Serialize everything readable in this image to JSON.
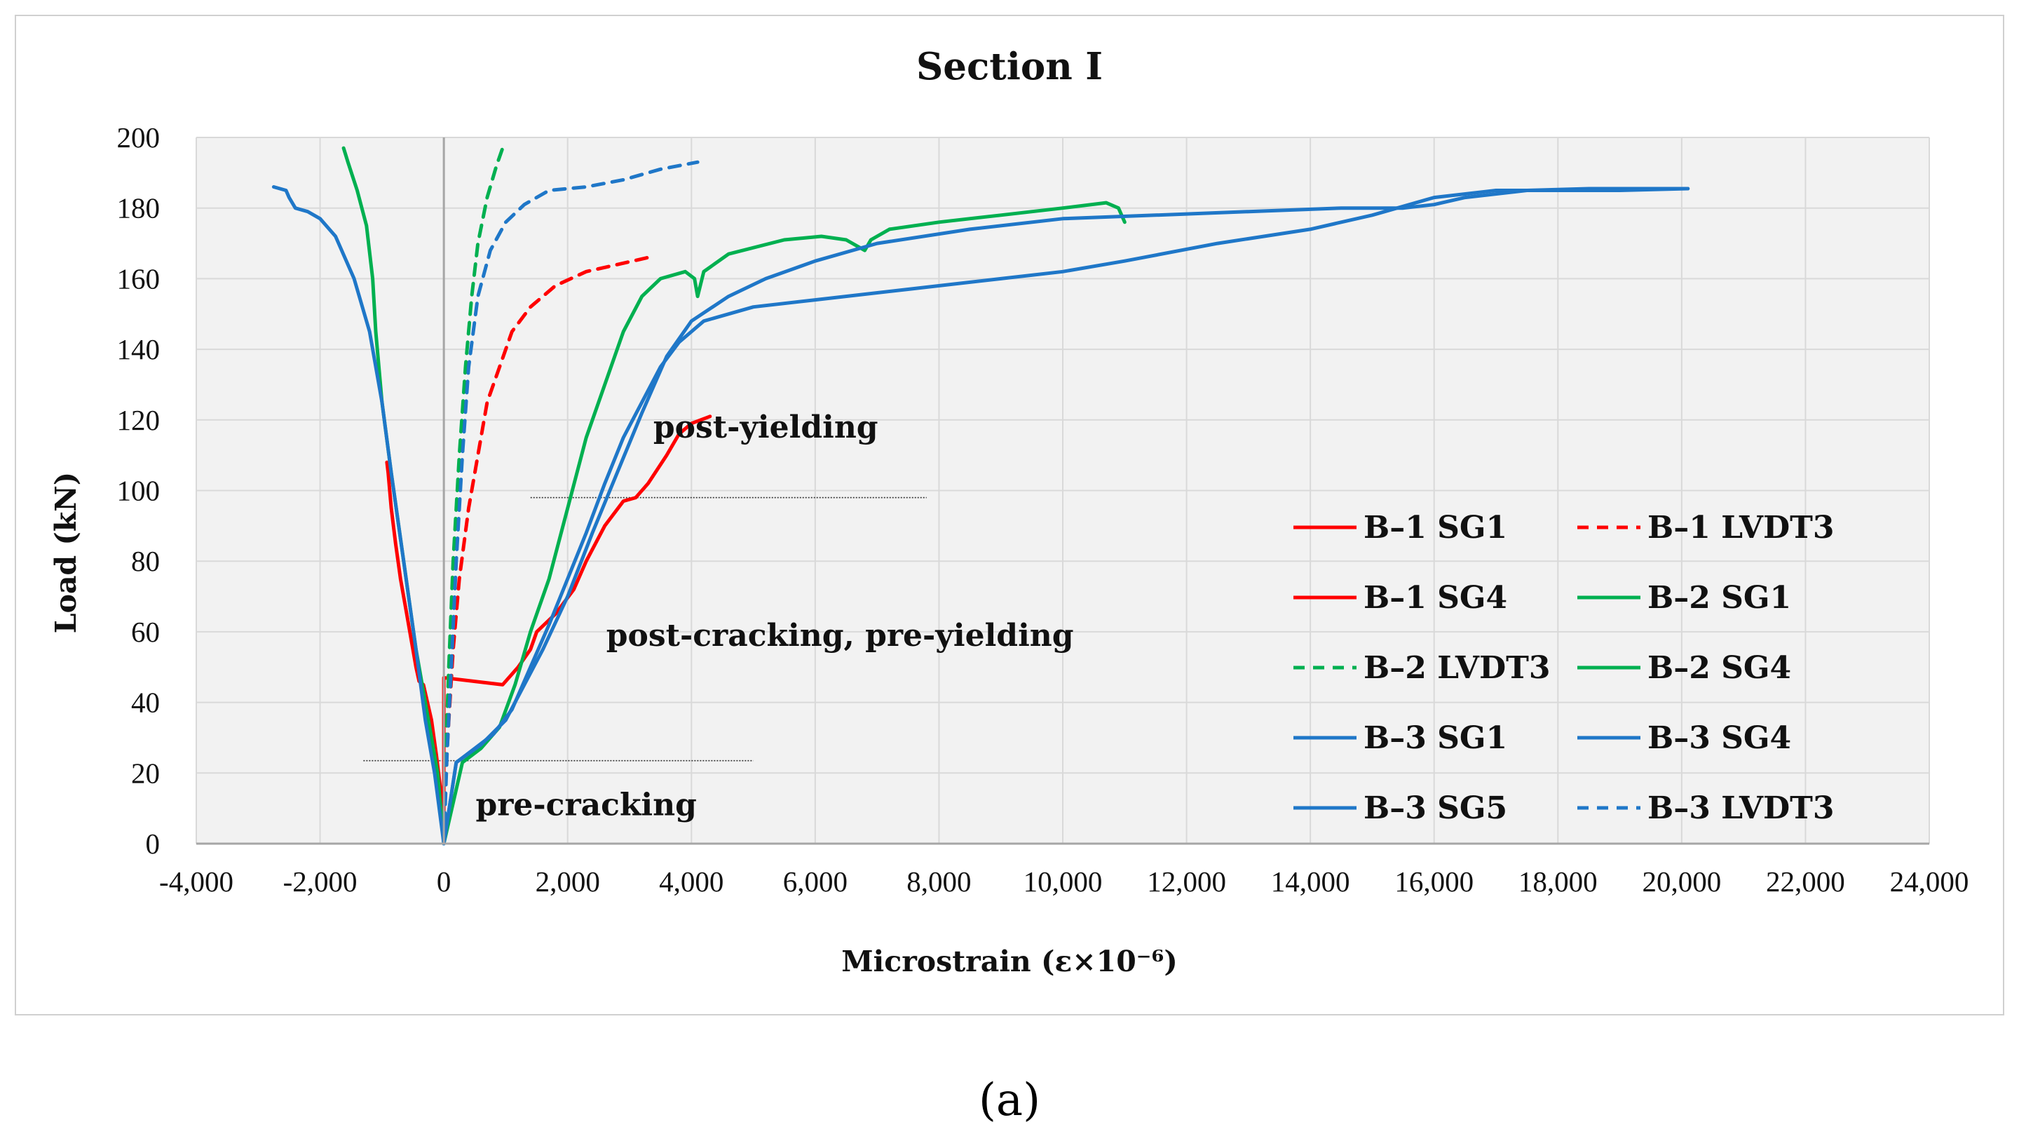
{
  "chart_data": {
    "type": "line",
    "title": "Section I",
    "xlabel": "Microstrain (ε×10⁻⁶)",
    "ylabel": "Load (kN)",
    "xlim": [
      -4000,
      24000
    ],
    "ylim": [
      0,
      200
    ],
    "xticks": [
      -4000,
      -2000,
      0,
      2000,
      4000,
      6000,
      8000,
      10000,
      12000,
      14000,
      16000,
      18000,
      20000,
      22000,
      24000
    ],
    "xtick_labels": [
      "-4,000",
      "-2,000",
      "0",
      "2,000",
      "4,000",
      "6,000",
      "8,000",
      "10,000",
      "12,000",
      "14,000",
      "16,000",
      "18,000",
      "20,000",
      "22,000",
      "24,000"
    ],
    "yticks": [
      0,
      20,
      40,
      60,
      80,
      100,
      120,
      140,
      160,
      180,
      200
    ],
    "ytick_labels": [
      "0",
      "20",
      "40",
      "60",
      "80",
      "100",
      "120",
      "140",
      "160",
      "180",
      "200"
    ],
    "grid": true,
    "legend_position": "center-right",
    "annotations": [
      {
        "text": "post-yielding",
        "x": 5200,
        "y": 115
      },
      {
        "text": "post-cracking, pre-yielding",
        "x": 6400,
        "y": 56
      },
      {
        "text": "pre-cracking",
        "x": 2300,
        "y": 8
      }
    ],
    "region_lines": [
      {
        "x1": -1300,
        "x2": 5000,
        "y": 23.5
      },
      {
        "x1": 1400,
        "x2": 7800,
        "y": 98
      }
    ],
    "series": [
      {
        "name": "B–1 SG1",
        "color": "#ff0000",
        "dash": false,
        "points": [
          [
            0,
            0
          ],
          [
            -50,
            15
          ],
          [
            -120,
            25
          ],
          [
            -200,
            35
          ],
          [
            -330,
            45
          ],
          [
            -400,
            46
          ],
          [
            -450,
            50
          ],
          [
            -500,
            55
          ],
          [
            -600,
            65
          ],
          [
            -700,
            75
          ],
          [
            -780,
            85
          ],
          [
            -850,
            95
          ],
          [
            -900,
            105
          ],
          [
            -920,
            108
          ]
        ]
      },
      {
        "name": "B–1 LVDT3",
        "color": "#ff0000",
        "dash": true,
        "points": [
          [
            0,
            0
          ],
          [
            30,
            20
          ],
          [
            80,
            35
          ],
          [
            150,
            55
          ],
          [
            250,
            75
          ],
          [
            400,
            95
          ],
          [
            550,
            110
          ],
          [
            700,
            125
          ],
          [
            900,
            135
          ],
          [
            1100,
            145
          ],
          [
            1400,
            152
          ],
          [
            1800,
            158
          ],
          [
            2300,
            162
          ],
          [
            2800,
            164
          ],
          [
            3300,
            166
          ]
        ]
      },
      {
        "name": "B–1 SG4",
        "color": "#ff0000",
        "dash": false,
        "points": [
          [
            0,
            0
          ],
          [
            0,
            47
          ],
          [
            950,
            45
          ],
          [
            1200,
            50
          ],
          [
            1400,
            55
          ],
          [
            1500,
            60
          ],
          [
            1800,
            65
          ],
          [
            2100,
            72
          ],
          [
            2300,
            80
          ],
          [
            2600,
            90
          ],
          [
            2900,
            97
          ],
          [
            3100,
            98
          ],
          [
            3300,
            102
          ],
          [
            3600,
            110
          ],
          [
            3800,
            116
          ],
          [
            4000,
            119
          ],
          [
            4300,
            121
          ]
        ]
      },
      {
        "name": "B–2 SG1",
        "color": "#00b050",
        "dash": false,
        "points": [
          [
            0,
            0
          ],
          [
            -100,
            20
          ],
          [
            -250,
            35
          ],
          [
            -450,
            55
          ],
          [
            -650,
            80
          ],
          [
            -850,
            105
          ],
          [
            -1000,
            125
          ],
          [
            -1100,
            145
          ],
          [
            -1150,
            160
          ],
          [
            -1250,
            175
          ],
          [
            -1400,
            185
          ],
          [
            -1550,
            193
          ],
          [
            -1620,
            197
          ]
        ]
      },
      {
        "name": "B–2 LVDT3",
        "color": "#00b050",
        "dash": true,
        "points": [
          [
            0,
            0
          ],
          [
            30,
            25
          ],
          [
            80,
            50
          ],
          [
            150,
            80
          ],
          [
            250,
            110
          ],
          [
            350,
            135
          ],
          [
            450,
            155
          ],
          [
            550,
            170
          ],
          [
            700,
            183
          ],
          [
            850,
            192
          ],
          [
            950,
            197
          ]
        ]
      },
      {
        "name": "B–2 SG4",
        "color": "#00b050",
        "dash": false,
        "points": [
          [
            0,
            0
          ],
          [
            300,
            23
          ],
          [
            600,
            27
          ],
          [
            900,
            33
          ],
          [
            1150,
            45
          ],
          [
            1400,
            60
          ],
          [
            1700,
            75
          ],
          [
            2000,
            95
          ],
          [
            2300,
            115
          ],
          [
            2600,
            130
          ],
          [
            2900,
            145
          ],
          [
            3200,
            155
          ],
          [
            3500,
            160
          ],
          [
            3900,
            162
          ],
          [
            4050,
            160
          ],
          [
            4100,
            155
          ],
          [
            4200,
            162
          ],
          [
            4600,
            167
          ],
          [
            5500,
            171
          ],
          [
            6100,
            172
          ],
          [
            6500,
            171
          ],
          [
            6800,
            168
          ],
          [
            6900,
            171
          ],
          [
            7200,
            174
          ],
          [
            8000,
            176
          ],
          [
            9000,
            178
          ],
          [
            10000,
            180
          ],
          [
            10700,
            181.5
          ],
          [
            10900,
            180
          ],
          [
            11000,
            176
          ]
        ]
      },
      {
        "name": "B–3 SG1",
        "color": "#1f77c8",
        "dash": false,
        "points": [
          [
            0,
            0
          ],
          [
            -150,
            20
          ],
          [
            -300,
            35
          ],
          [
            -450,
            55
          ],
          [
            -650,
            80
          ],
          [
            -850,
            105
          ],
          [
            -1000,
            125
          ],
          [
            -1200,
            145
          ],
          [
            -1450,
            160
          ],
          [
            -1750,
            172
          ],
          [
            -2000,
            177
          ],
          [
            -2200,
            179
          ],
          [
            -2400,
            180
          ],
          [
            -2500,
            183
          ],
          [
            -2550,
            185
          ],
          [
            -2750,
            186
          ]
        ]
      },
      {
        "name": "B–3 SG4",
        "color": "#1f77c8",
        "dash": false,
        "points": [
          [
            0,
            0
          ],
          [
            200,
            23
          ],
          [
            500,
            27
          ],
          [
            800,
            31
          ],
          [
            1100,
            38
          ],
          [
            1400,
            50
          ],
          [
            1700,
            62
          ],
          [
            2000,
            75
          ],
          [
            2300,
            88
          ],
          [
            2600,
            102
          ],
          [
            2900,
            115
          ],
          [
            3200,
            125
          ],
          [
            3500,
            135
          ],
          [
            3800,
            142
          ],
          [
            4200,
            148
          ],
          [
            5000,
            152
          ],
          [
            6000,
            154
          ],
          [
            7500,
            157
          ],
          [
            9000,
            160
          ],
          [
            10000,
            162
          ],
          [
            11000,
            165
          ],
          [
            12500,
            170
          ],
          [
            14000,
            174
          ],
          [
            15000,
            178
          ],
          [
            16000,
            183
          ],
          [
            17000,
            185
          ],
          [
            18000,
            185
          ],
          [
            19000,
            185
          ],
          [
            20100,
            185.5
          ]
        ]
      },
      {
        "name": "B–3 SG5",
        "color": "#1f77c8",
        "dash": false,
        "points": [
          [
            0,
            0
          ],
          [
            200,
            23
          ],
          [
            600,
            28
          ],
          [
            1000,
            35
          ],
          [
            1300,
            45
          ],
          [
            1600,
            55
          ],
          [
            2000,
            70
          ],
          [
            2400,
            88
          ],
          [
            2800,
            105
          ],
          [
            3200,
            122
          ],
          [
            3600,
            138
          ],
          [
            4000,
            148
          ],
          [
            4600,
            155
          ],
          [
            5200,
            160
          ],
          [
            6000,
            165
          ],
          [
            7000,
            170
          ],
          [
            8500,
            174
          ],
          [
            10000,
            177
          ],
          [
            11500,
            178
          ],
          [
            13000,
            179
          ],
          [
            14500,
            180
          ],
          [
            15500,
            180
          ],
          [
            16000,
            181
          ],
          [
            16500,
            183
          ],
          [
            17500,
            185
          ],
          [
            18500,
            185.5
          ],
          [
            20100,
            185.5
          ]
        ]
      },
      {
        "name": "B–3 LVDT3",
        "color": "#1f77c8",
        "dash": true,
        "points": [
          [
            0,
            0
          ],
          [
            50,
            25
          ],
          [
            120,
            50
          ],
          [
            200,
            80
          ],
          [
            300,
            110
          ],
          [
            400,
            135
          ],
          [
            550,
            155
          ],
          [
            750,
            168
          ],
          [
            1000,
            176
          ],
          [
            1300,
            181
          ],
          [
            1700,
            185
          ],
          [
            2300,
            186
          ],
          [
            2900,
            188
          ],
          [
            3500,
            191
          ],
          [
            4100,
            193
          ]
        ]
      }
    ]
  },
  "caption": "(a)"
}
